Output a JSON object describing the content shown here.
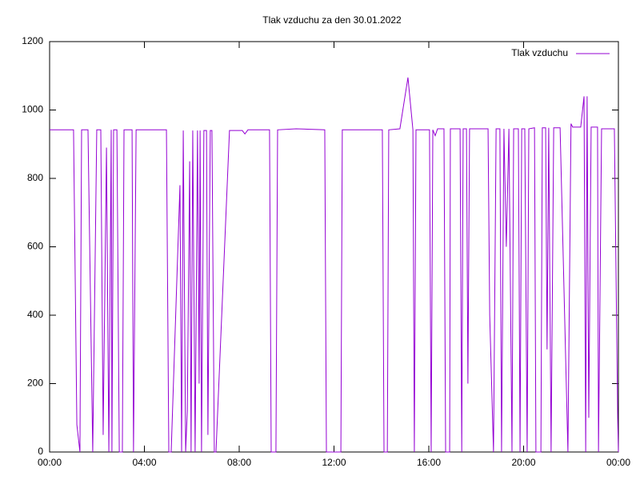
{
  "chart_data": {
    "type": "line",
    "title": "Tlak vzduchu za den 30.01.2022",
    "x": [
      0,
      1.01,
      1.15,
      1.28,
      1.35,
      1.62,
      1.82,
      1.99,
      2.16,
      2.26,
      2.4,
      2.5,
      2.6,
      2.63,
      2.7,
      2.84,
      2.94,
      3.07,
      3.14,
      3.48,
      3.54,
      3.65,
      4.93,
      5.03,
      5.13,
      5.5,
      5.57,
      5.64,
      5.74,
      5.81,
      5.91,
      5.97,
      6.04,
      6.14,
      6.24,
      6.31,
      6.35,
      6.41,
      6.51,
      6.62,
      6.68,
      6.78,
      6.85,
      6.95,
      7.02,
      7.59,
      8.13,
      8.24,
      8.37,
      9.28,
      9.35,
      9.55,
      9.62,
      10.4,
      11.61,
      11.68,
      12.29,
      12.35,
      14.04,
      14.11,
      14.25,
      14.31,
      14.78,
      15.12,
      15.33,
      15.39,
      15.46,
      16.03,
      16.1,
      16.17,
      16.27,
      16.37,
      16.64,
      16.71,
      16.88,
      16.91,
      17.32,
      17.39,
      17.45,
      17.59,
      17.65,
      17.72,
      18.5,
      18.57,
      18.73,
      18.84,
      19.0,
      19.07,
      19.17,
      19.27,
      19.38,
      19.51,
      19.58,
      19.78,
      19.85,
      19.92,
      20.05,
      20.15,
      20.22,
      20.46,
      20.52,
      20.73,
      20.79,
      20.93,
      20.99,
      21.06,
      21.16,
      21.27,
      21.54,
      21.87,
      22.0,
      22.07,
      22.41,
      22.55,
      22.62,
      22.68,
      22.75,
      22.85,
      23.12,
      23.16,
      23.29,
      23.83,
      23.97,
      24.0
    ],
    "series": [
      {
        "name": "Tlak vzduchu",
        "color": "#9400d3",
        "values": [
          942,
          942,
          80,
          0,
          942,
          942,
          0,
          942,
          942,
          50,
          890,
          0,
          942,
          0,
          942,
          942,
          0,
          0,
          942,
          942,
          0,
          942,
          942,
          0,
          0,
          780,
          0,
          940,
          0,
          120,
          850,
          0,
          940,
          0,
          940,
          200,
          940,
          0,
          940,
          940,
          50,
          940,
          940,
          0,
          0,
          940,
          940,
          930,
          942,
          942,
          0,
          0,
          942,
          945,
          942,
          0,
          0,
          942,
          942,
          0,
          0,
          942,
          945,
          1095,
          942,
          0,
          942,
          942,
          0,
          942,
          925,
          945,
          945,
          0,
          0,
          945,
          945,
          0,
          945,
          945,
          200,
          945,
          945,
          400,
          0,
          945,
          945,
          0,
          945,
          600,
          945,
          0,
          945,
          945,
          0,
          945,
          945,
          0,
          945,
          948,
          0,
          0,
          948,
          948,
          300,
          948,
          0,
          948,
          948,
          0,
          960,
          950,
          950,
          1040,
          0,
          1040,
          100,
          950,
          950,
          0,
          945,
          945,
          100,
          0
        ]
      }
    ],
    "xlim": [
      0,
      24
    ],
    "xticks": [
      {
        "value": 0,
        "label": "00:00"
      },
      {
        "value": 4,
        "label": "04:00"
      },
      {
        "value": 8,
        "label": "08:00"
      },
      {
        "value": 12,
        "label": "12:00"
      },
      {
        "value": 16,
        "label": "16:00"
      },
      {
        "value": 20,
        "label": "20:00"
      },
      {
        "value": 24,
        "label": "00:00"
      }
    ],
    "ylim": [
      0,
      1200
    ],
    "yticks": [
      0,
      200,
      400,
      600,
      800,
      1000,
      1200
    ],
    "legend": "top-right",
    "grid": false
  }
}
